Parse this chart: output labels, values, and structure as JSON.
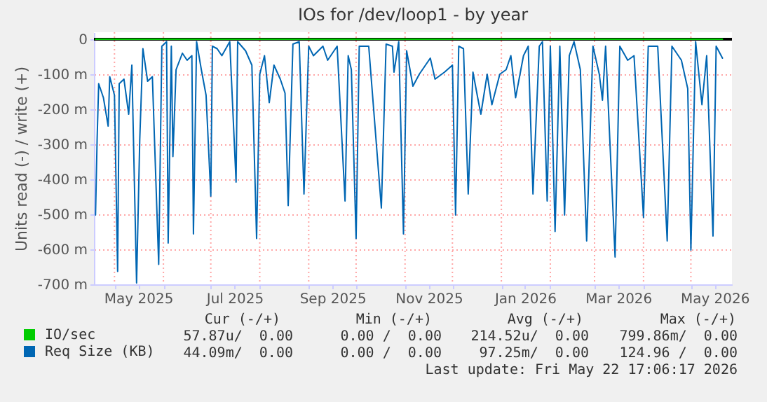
{
  "chart_data": {
    "type": "line",
    "title": "IOs for /dev/loop1 - by year",
    "ylabel": "Units read (-) / write (+)",
    "xlim": [
      "2025-04-18",
      "2026-05-27"
    ],
    "xticks": [
      {
        "value": "2025-05-01",
        "label": null
      },
      {
        "value": "2025-05-16",
        "label": "May 2025"
      },
      {
        "value": "2025-06-01",
        "label": null
      },
      {
        "value": "2025-07-01",
        "label": null
      },
      {
        "value": "2025-07-16",
        "label": "Jul 2025"
      },
      {
        "value": "2025-08-01",
        "label": null
      },
      {
        "value": "2025-09-01",
        "label": null
      },
      {
        "value": "2025-09-16",
        "label": "Sep 2025"
      },
      {
        "value": "2025-10-01",
        "label": null
      },
      {
        "value": "2025-11-01",
        "label": null
      },
      {
        "value": "2025-11-16",
        "label": "Nov 2025"
      },
      {
        "value": "2025-12-01",
        "label": null
      },
      {
        "value": "2026-01-01",
        "label": null
      },
      {
        "value": "2026-01-16",
        "label": "Jan 2026"
      },
      {
        "value": "2026-02-01",
        "label": null
      },
      {
        "value": "2026-03-01",
        "label": null
      },
      {
        "value": "2026-03-16",
        "label": "Mar 2026"
      },
      {
        "value": "2026-04-01",
        "label": null
      },
      {
        "value": "2026-05-01",
        "label": null
      },
      {
        "value": "2026-05-16",
        "label": "May 2026"
      }
    ],
    "ylim": [
      -700,
      20
    ],
    "yticks": [
      {
        "value": -700,
        "label": "-700 m"
      },
      {
        "value": -600,
        "label": "-600 m"
      },
      {
        "value": -500,
        "label": "-500 m"
      },
      {
        "value": -400,
        "label": "-400 m"
      },
      {
        "value": -300,
        "label": "-300 m"
      },
      {
        "value": -200,
        "label": "-200 m"
      },
      {
        "value": -100,
        "label": "-100 m"
      },
      0
    ],
    "grid": true,
    "legend": "bottom left",
    "line_style": "solid",
    "ref_lines": [
      {
        "axis": "y",
        "value": 0,
        "color": "#000000"
      }
    ],
    "series": [
      {
        "name": "IO/sec",
        "color": "#00cc00",
        "x": [
          "2025-04-19",
          "2026-05-21"
        ],
        "values": [
          0,
          0
        ]
      },
      {
        "name": "Req Size (KB)",
        "color": "#0066b3",
        "x": [
          "2025-04-19",
          "2025-04-20",
          "2025-04-21",
          "2025-04-24",
          "2025-04-27",
          "2025-04-28",
          "2025-05-01",
          "2025-05-03",
          "2025-05-04",
          "2025-05-07",
          "2025-05-10",
          "2025-05-12",
          "2025-05-15",
          "2025-05-17",
          "2025-05-19",
          "2025-05-22",
          "2025-05-25",
          "2025-05-29",
          "2025-05-31",
          "2025-06-03",
          "2025-06-04",
          "2025-06-06",
          "2025-06-07",
          "2025-06-09",
          "2025-06-13",
          "2025-06-16",
          "2025-06-19",
          "2025-06-20",
          "2025-06-22",
          "2025-06-25",
          "2025-06-28",
          "2025-07-01",
          "2025-07-02",
          "2025-07-05",
          "2025-07-08",
          "2025-07-13",
          "2025-07-17",
          "2025-07-18",
          "2025-07-23",
          "2025-07-27",
          "2025-07-30",
          "2025-08-01",
          "2025-08-04",
          "2025-08-07",
          "2025-08-10",
          "2025-08-14",
          "2025-08-17",
          "2025-08-19",
          "2025-08-22",
          "2025-08-26",
          "2025-08-29",
          "2025-09-01",
          "2025-09-04",
          "2025-09-10",
          "2025-09-13",
          "2025-09-19",
          "2025-09-24",
          "2025-09-26",
          "2025-09-28",
          "2025-10-01",
          "2025-10-03",
          "2025-10-09",
          "2025-10-17",
          "2025-10-20",
          "2025-10-24",
          "2025-10-25",
          "2025-10-28",
          "2025-10-31",
          "2025-11-02",
          "2025-11-06",
          "2025-11-10",
          "2025-11-17",
          "2025-11-20",
          "2025-11-26",
          "2025-12-01",
          "2025-12-03",
          "2025-12-05",
          "2025-12-08",
          "2025-12-11",
          "2025-12-14",
          "2025-12-17",
          "2025-12-19",
          "2025-12-23",
          "2025-12-26",
          "2025-12-31",
          "2026-01-04",
          "2026-01-07",
          "2026-01-10",
          "2026-01-15",
          "2026-01-18",
          "2026-01-21",
          "2026-01-25",
          "2026-01-27",
          "2026-01-30",
          "2026-02-01",
          "2026-02-04",
          "2026-02-07",
          "2026-02-10",
          "2026-02-13",
          "2026-02-16",
          "2026-02-20",
          "2026-02-24",
          "2026-02-28",
          "2026-03-04",
          "2026-03-06",
          "2026-03-08",
          "2026-03-14",
          "2026-03-17",
          "2026-03-22",
          "2026-03-26",
          "2026-04-01",
          "2026-04-04",
          "2026-04-10",
          "2026-04-16",
          "2026-04-19",
          "2026-04-25",
          "2026-04-29",
          "2026-05-01",
          "2026-05-04",
          "2026-05-08",
          "2026-05-11",
          "2026-05-15",
          "2026-05-17",
          "2026-05-21"
        ],
        "values": [
          -502,
          -288,
          -127,
          -167,
          -248,
          -107,
          -160,
          -663,
          -127,
          -114,
          -214,
          -74,
          -696,
          -288,
          -27,
          -120,
          -107,
          -643,
          -20,
          -7,
          -582,
          -20,
          -335,
          -87,
          -40,
          -60,
          -47,
          -556,
          -7,
          -87,
          -160,
          -448,
          -20,
          -27,
          -47,
          -7,
          -408,
          -7,
          -33,
          -74,
          -569,
          -100,
          -47,
          -181,
          -74,
          -114,
          -154,
          -475,
          -14,
          -7,
          -442,
          -20,
          -47,
          -20,
          -60,
          -20,
          -462,
          -47,
          -87,
          -569,
          -20,
          -20,
          -482,
          -14,
          -20,
          -94,
          -7,
          -556,
          -33,
          -134,
          -100,
          -54,
          -114,
          -94,
          -74,
          -502,
          -20,
          -27,
          -442,
          -94,
          -167,
          -214,
          -100,
          -187,
          -100,
          -87,
          -47,
          -167,
          -47,
          -20,
          -442,
          -20,
          -7,
          -462,
          -20,
          -549,
          -20,
          -502,
          -47,
          -7,
          -87,
          -576,
          -20,
          -100,
          -174,
          -20,
          -622,
          -20,
          -60,
          -47,
          -509,
          -20,
          -20,
          -576,
          -20,
          -60,
          -141,
          -602,
          -7,
          -187,
          -47,
          -562,
          -20,
          -54
        ]
      }
    ],
    "annotations": [
      "Cur (-/+)",
      "Min (-/+)",
      "Avg (-/+)",
      "Max (-/+)",
      "57.87u/  0.00",
      "0.00 /  0.00",
      "214.52u/  0.00",
      "799.86m/  0.00",
      "44.09m/  0.00",
      "0.00 /  0.00",
      "97.25m/  0.00",
      "124.96 /  0.00",
      "Last update: Fri May 22 17:06:17 2026"
    ]
  }
}
